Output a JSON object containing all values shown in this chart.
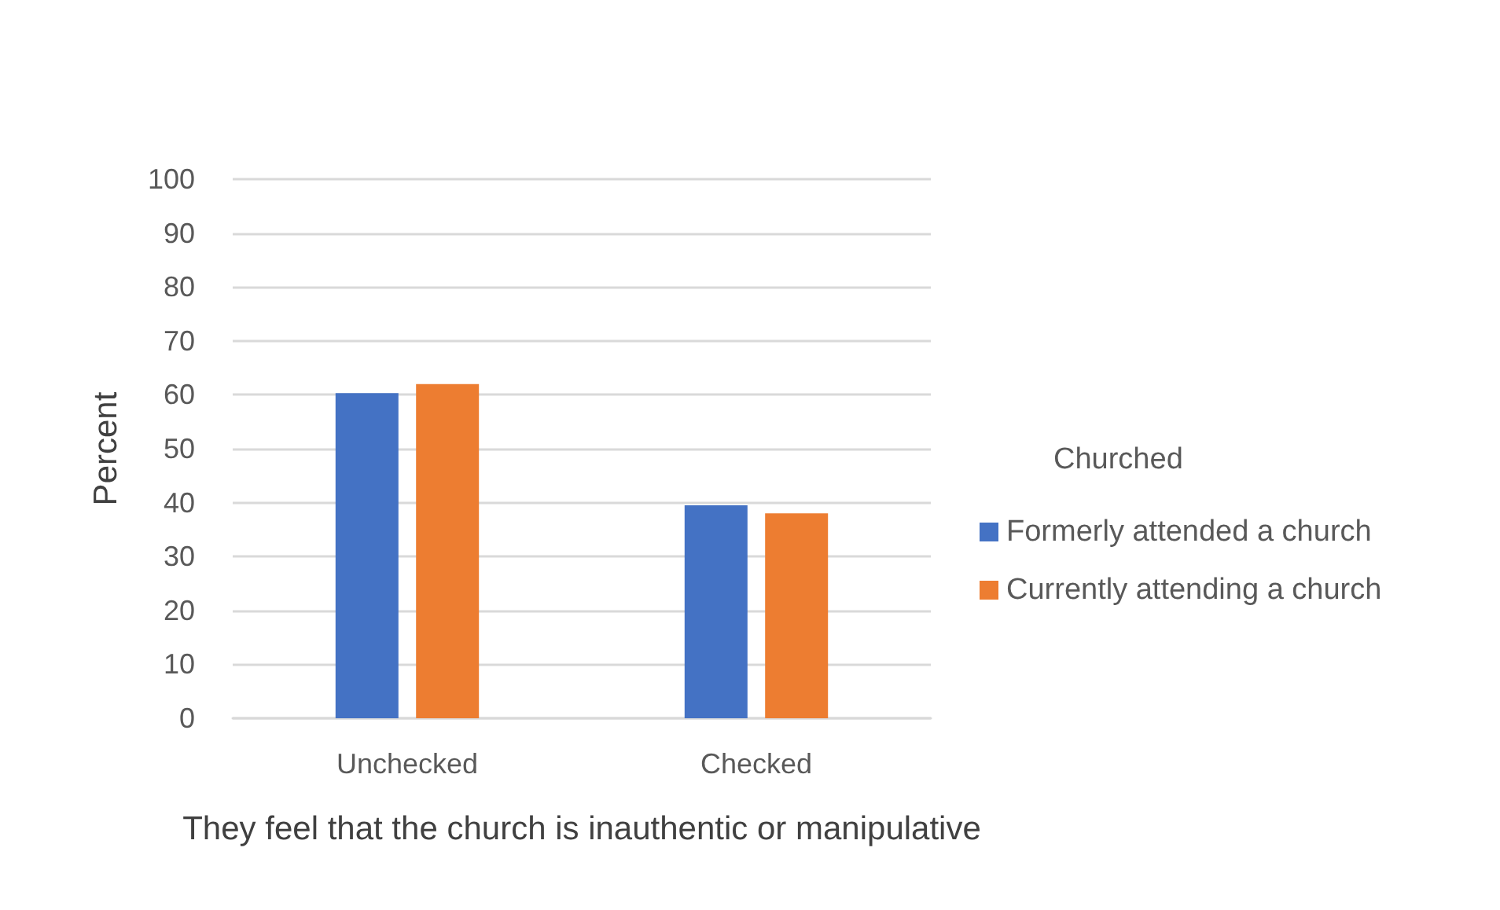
{
  "chart_data": {
    "type": "bar",
    "xlabel": "They feel that the church is inauthentic or manipulative",
    "ylabel": "Percent",
    "legend_title": "Churched",
    "categories": [
      "Unchecked",
      "Checked"
    ],
    "series": [
      {
        "name": "Formerly attended a church",
        "color": "#4472c4",
        "values": [
          60.3,
          39.5
        ]
      },
      {
        "name": "Currently attending a church",
        "color": "#ed7d31",
        "values": [
          62,
          38
        ]
      }
    ],
    "ylim": [
      0,
      100
    ],
    "yticks": [
      0,
      10,
      20,
      30,
      40,
      50,
      60,
      70,
      80,
      90,
      100
    ],
    "grid": "y",
    "legend": "right"
  }
}
